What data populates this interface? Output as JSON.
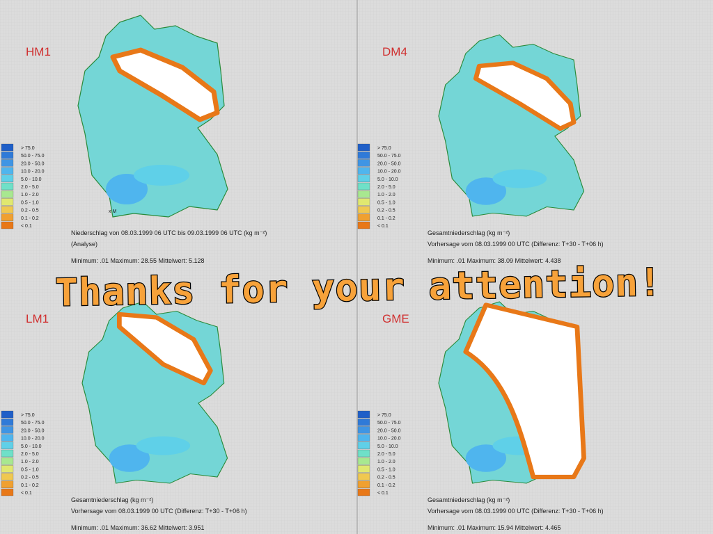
{
  "title": "Thanks for your attention!",
  "legend": [
    {
      "label": "> 75.0",
      "color": "#1f5fc8"
    },
    {
      "label": "50.0 - 75.0",
      "color": "#2f7ad8"
    },
    {
      "label": "20.0 - 50.0",
      "color": "#3f95e4"
    },
    {
      "label": "10.0 - 20.0",
      "color": "#4fb5ee"
    },
    {
      "label": "5.0 - 10.0",
      "color": "#5fd0e8"
    },
    {
      "label": "2.0 - 5.0",
      "color": "#6fe0c8"
    },
    {
      "label": "1.0 - 2.0",
      "color": "#a8e890"
    },
    {
      "label": "0.5 - 1.0",
      "color": "#e0e870"
    },
    {
      "label": "0.2 - 0.5",
      "color": "#f0c850"
    },
    {
      "label": "0.1 - 0.2",
      "color": "#f0a030"
    },
    {
      "label": "< 0.1",
      "color": "#e87818"
    }
  ],
  "panels": [
    {
      "label": "HM1",
      "marker": "x M",
      "caption": [
        "Niederschlag von 08.03.1999 06 UTC bis 09.03.1999 06 UTC (kg m⁻²)",
        "(Analyse)",
        "Minimum: .01  Maximum: 28.55  Mittelwert: 5.128"
      ]
    },
    {
      "label": "DM4",
      "caption": [
        "Gesamtniederschlag (kg m⁻²)",
        "Vorhersage vom 08.03.1999 00 UTC (Differenz: T+30 - T+06 h)",
        "Minimum: .01  Maximum: 38.09  Mittelwert: 4.438"
      ]
    },
    {
      "label": "LM1",
      "caption": [
        "Gesamtniederschlag (kg m⁻²)",
        "Vorhersage vom 08.03.1999 00 UTC (Differenz: T+30 - T+06 h)",
        "Minimum: .01  Maximum: 36.62  Mittelwert: 3.951"
      ]
    },
    {
      "label": "GME",
      "caption": [
        "Gesamtniederschlag (kg m⁻²)",
        "Vorhersage vom 08.03.1999 00 UTC (Differenz: T+30 - T+06 h)",
        "Minimum: .01  Maximum: 15.94  Mittelwert: 4.465"
      ]
    }
  ]
}
